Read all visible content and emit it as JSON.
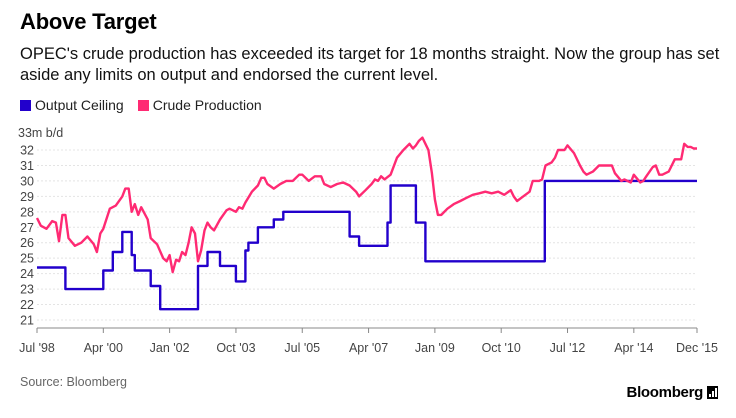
{
  "chart_data": {
    "type": "line",
    "title": "Above Target",
    "subtitle": "OPEC's crude production has exceeded its target for 18 months straight. Now the group has set aside any limits on output and endorsed the current level.",
    "ylabel": "33m b/d",
    "ylim": [
      21,
      33
    ],
    "yticks": [
      21,
      22,
      23,
      24,
      25,
      26,
      27,
      28,
      29,
      30,
      31,
      32
    ],
    "xlim": [
      1998.5,
      2015.917
    ],
    "xticks": [
      {
        "x": 1998.5,
        "label": "Jul '98"
      },
      {
        "x": 2000.25,
        "label": "Apr '00"
      },
      {
        "x": 2002.0,
        "label": "Jan '02"
      },
      {
        "x": 2003.75,
        "label": "Oct '03"
      },
      {
        "x": 2005.5,
        "label": "Jul '05"
      },
      {
        "x": 2007.25,
        "label": "Apr '07"
      },
      {
        "x": 2009.0,
        "label": "Jan '09"
      },
      {
        "x": 2010.75,
        "label": "Oct '10"
      },
      {
        "x": 2012.5,
        "label": "Jul '12"
      },
      {
        "x": 2014.25,
        "label": "Apr '14"
      },
      {
        "x": 2015.917,
        "label": "Dec '15"
      }
    ],
    "series": [
      {
        "name": "Output Ceiling",
        "color": "#2200cc",
        "step": true,
        "points": [
          [
            1998.5,
            24.4
          ],
          [
            1999.25,
            24.4
          ],
          [
            1999.25,
            23.0
          ],
          [
            2000.25,
            23.0
          ],
          [
            2000.25,
            24.2
          ],
          [
            2000.5,
            24.2
          ],
          [
            2000.5,
            25.4
          ],
          [
            2000.75,
            25.4
          ],
          [
            2000.75,
            26.7
          ],
          [
            2001.0,
            26.7
          ],
          [
            2001.0,
            25.2
          ],
          [
            2001.08,
            25.2
          ],
          [
            2001.08,
            24.2
          ],
          [
            2001.5,
            24.2
          ],
          [
            2001.5,
            23.2
          ],
          [
            2001.75,
            23.2
          ],
          [
            2001.75,
            21.7
          ],
          [
            2002.75,
            21.7
          ],
          [
            2002.75,
            24.5
          ],
          [
            2003.0,
            24.5
          ],
          [
            2003.0,
            25.4
          ],
          [
            2003.33,
            25.4
          ],
          [
            2003.33,
            24.5
          ],
          [
            2003.75,
            24.5
          ],
          [
            2003.75,
            23.5
          ],
          [
            2004.0,
            23.5
          ],
          [
            2004.0,
            25.5
          ],
          [
            2004.08,
            25.5
          ],
          [
            2004.08,
            26.0
          ],
          [
            2004.33,
            26.0
          ],
          [
            2004.33,
            27.0
          ],
          [
            2004.75,
            27.0
          ],
          [
            2004.75,
            27.5
          ],
          [
            2005.0,
            27.5
          ],
          [
            2005.0,
            28.0
          ],
          [
            2006.75,
            28.0
          ],
          [
            2006.75,
            26.4
          ],
          [
            2007.0,
            26.4
          ],
          [
            2007.0,
            25.8
          ],
          [
            2007.75,
            25.8
          ],
          [
            2007.75,
            27.3
          ],
          [
            2007.83,
            27.3
          ],
          [
            2007.83,
            29.7
          ],
          [
            2008.5,
            29.7
          ],
          [
            2008.5,
            27.3
          ],
          [
            2008.75,
            27.3
          ],
          [
            2008.75,
            24.8
          ],
          [
            2011.9,
            24.8
          ],
          [
            2011.9,
            30.0
          ],
          [
            2015.917,
            30.0
          ]
        ]
      },
      {
        "name": "Crude Production",
        "color": "#ff2a73",
        "step": false,
        "points": [
          [
            1998.5,
            27.6
          ],
          [
            1998.6,
            27.1
          ],
          [
            1998.75,
            26.9
          ],
          [
            1998.9,
            27.4
          ],
          [
            1999.0,
            27.3
          ],
          [
            1999.08,
            26.1
          ],
          [
            1999.17,
            27.8
          ],
          [
            1999.25,
            27.8
          ],
          [
            1999.33,
            26.3
          ],
          [
            1999.5,
            25.8
          ],
          [
            1999.67,
            26.0
          ],
          [
            1999.83,
            26.4
          ],
          [
            2000.0,
            25.9
          ],
          [
            2000.08,
            25.4
          ],
          [
            2000.17,
            26.6
          ],
          [
            2000.25,
            26.9
          ],
          [
            2000.42,
            28.2
          ],
          [
            2000.58,
            28.4
          ],
          [
            2000.75,
            29.0
          ],
          [
            2000.83,
            29.5
          ],
          [
            2000.92,
            29.5
          ],
          [
            2001.0,
            28.0
          ],
          [
            2001.08,
            28.5
          ],
          [
            2001.17,
            27.8
          ],
          [
            2001.25,
            28.3
          ],
          [
            2001.42,
            27.5
          ],
          [
            2001.5,
            26.3
          ],
          [
            2001.67,
            25.9
          ],
          [
            2001.83,
            25.0
          ],
          [
            2001.92,
            24.8
          ],
          [
            2002.0,
            25.2
          ],
          [
            2002.08,
            24.1
          ],
          [
            2002.17,
            24.9
          ],
          [
            2002.25,
            24.8
          ],
          [
            2002.33,
            25.4
          ],
          [
            2002.42,
            25.2
          ],
          [
            2002.5,
            26.0
          ],
          [
            2002.58,
            27.0
          ],
          [
            2002.67,
            26.6
          ],
          [
            2002.75,
            24.8
          ],
          [
            2002.83,
            25.5
          ],
          [
            2002.92,
            26.8
          ],
          [
            2003.0,
            27.3
          ],
          [
            2003.08,
            27.0
          ],
          [
            2003.17,
            26.8
          ],
          [
            2003.33,
            27.5
          ],
          [
            2003.5,
            28.1
          ],
          [
            2003.58,
            28.2
          ],
          [
            2003.75,
            28.0
          ],
          [
            2003.83,
            28.3
          ],
          [
            2003.92,
            28.2
          ],
          [
            2004.0,
            28.6
          ],
          [
            2004.17,
            29.3
          ],
          [
            2004.33,
            29.7
          ],
          [
            2004.42,
            30.2
          ],
          [
            2004.5,
            30.2
          ],
          [
            2004.58,
            29.8
          ],
          [
            2004.75,
            29.5
          ],
          [
            2004.92,
            29.8
          ],
          [
            2005.08,
            30.0
          ],
          [
            2005.25,
            30.0
          ],
          [
            2005.42,
            30.4
          ],
          [
            2005.5,
            30.4
          ],
          [
            2005.67,
            30.0
          ],
          [
            2005.83,
            30.3
          ],
          [
            2006.0,
            30.3
          ],
          [
            2006.08,
            29.8
          ],
          [
            2006.25,
            29.6
          ],
          [
            2006.42,
            29.8
          ],
          [
            2006.58,
            29.9
          ],
          [
            2006.75,
            29.7
          ],
          [
            2006.92,
            29.3
          ],
          [
            2007.0,
            29.0
          ],
          [
            2007.17,
            29.4
          ],
          [
            2007.33,
            29.8
          ],
          [
            2007.42,
            30.1
          ],
          [
            2007.5,
            30.0
          ],
          [
            2007.58,
            30.3
          ],
          [
            2007.67,
            30.1
          ],
          [
            2007.83,
            30.4
          ],
          [
            2008.0,
            31.5
          ],
          [
            2008.17,
            32.0
          ],
          [
            2008.33,
            32.4
          ],
          [
            2008.42,
            32.1
          ],
          [
            2008.5,
            32.3
          ],
          [
            2008.58,
            32.6
          ],
          [
            2008.67,
            32.8
          ],
          [
            2008.75,
            32.4
          ],
          [
            2008.83,
            32.0
          ],
          [
            2008.92,
            30.5
          ],
          [
            2009.0,
            28.8
          ],
          [
            2009.08,
            27.8
          ],
          [
            2009.17,
            27.8
          ],
          [
            2009.33,
            28.2
          ],
          [
            2009.5,
            28.5
          ],
          [
            2009.67,
            28.7
          ],
          [
            2009.83,
            28.9
          ],
          [
            2010.0,
            29.1
          ],
          [
            2010.17,
            29.2
          ],
          [
            2010.33,
            29.3
          ],
          [
            2010.5,
            29.2
          ],
          [
            2010.67,
            29.3
          ],
          [
            2010.83,
            29.1
          ],
          [
            2011.0,
            29.4
          ],
          [
            2011.08,
            29.0
          ],
          [
            2011.17,
            28.7
          ],
          [
            2011.33,
            29.0
          ],
          [
            2011.5,
            29.3
          ],
          [
            2011.58,
            30.0
          ],
          [
            2011.75,
            30.0
          ],
          [
            2011.83,
            30.1
          ],
          [
            2011.92,
            31.0
          ],
          [
            2012.08,
            31.2
          ],
          [
            2012.17,
            31.5
          ],
          [
            2012.25,
            32.0
          ],
          [
            2012.42,
            32.0
          ],
          [
            2012.5,
            32.3
          ],
          [
            2012.67,
            31.8
          ],
          [
            2012.83,
            31.0
          ],
          [
            2012.92,
            30.6
          ],
          [
            2013.0,
            30.4
          ],
          [
            2013.17,
            30.6
          ],
          [
            2013.33,
            31.0
          ],
          [
            2013.5,
            31.0
          ],
          [
            2013.67,
            31.0
          ],
          [
            2013.75,
            30.5
          ],
          [
            2013.92,
            30.0
          ],
          [
            2014.0,
            30.1
          ],
          [
            2014.17,
            29.9
          ],
          [
            2014.25,
            30.4
          ],
          [
            2014.42,
            29.9
          ],
          [
            2014.5,
            30.0
          ],
          [
            2014.58,
            30.3
          ],
          [
            2014.75,
            30.9
          ],
          [
            2014.83,
            31.0
          ],
          [
            2014.92,
            30.4
          ],
          [
            2015.0,
            30.4
          ],
          [
            2015.17,
            30.6
          ],
          [
            2015.33,
            31.4
          ],
          [
            2015.5,
            31.4
          ],
          [
            2015.58,
            32.4
          ],
          [
            2015.67,
            32.2
          ],
          [
            2015.75,
            32.2
          ],
          [
            2015.83,
            32.1
          ],
          [
            2015.917,
            32.1
          ]
        ]
      }
    ]
  },
  "legend": {
    "items": [
      {
        "label": "Output Ceiling",
        "color": "#2200cc"
      },
      {
        "label": "Crude Production",
        "color": "#ff2a73"
      }
    ]
  },
  "footer": {
    "source": "Source: Bloomberg",
    "brand": "Bloomberg"
  }
}
